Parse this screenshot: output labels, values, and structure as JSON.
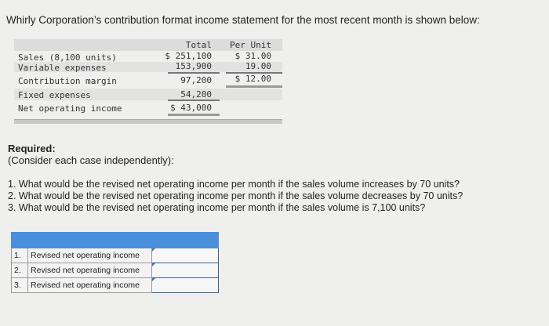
{
  "intro": "Whirly Corporation’s contribution format income statement for the most recent month is shown below:",
  "statement": {
    "headers": {
      "total": "Total",
      "per_unit": "Per Unit"
    },
    "rows": [
      {
        "label": "Sales (8,100 units)",
        "total": "$ 251,100",
        "per_unit": "$ 31.00"
      },
      {
        "label": "Variable expenses",
        "total": "153,900",
        "per_unit": "19.00"
      },
      {
        "label": "Contribution margin",
        "total": "97,200",
        "per_unit": "$ 12.00"
      },
      {
        "label": "Fixed expenses",
        "total": "54,200",
        "per_unit": ""
      },
      {
        "label": "Net operating income",
        "total": "$ 43,000",
        "per_unit": ""
      }
    ]
  },
  "required": {
    "title": "Required:",
    "note": "(Consider each case independently):"
  },
  "questions": [
    "1. What would be the revised net operating income per month if the sales volume increases by 70 units?",
    "2. What would be the revised net operating income per month if the sales volume decreases by 70 units?",
    "3. What would be the revised net operating income per month if the sales volume is 7,100 units?"
  ],
  "answer_table": {
    "header_color": "#4a8fdc",
    "rows": [
      {
        "num": "1.",
        "label": "Revised net operating income",
        "value": ""
      },
      {
        "num": "2.",
        "label": "Revised net operating income",
        "value": ""
      },
      {
        "num": "3.",
        "label": "Revised net operating income",
        "value": ""
      }
    ]
  }
}
